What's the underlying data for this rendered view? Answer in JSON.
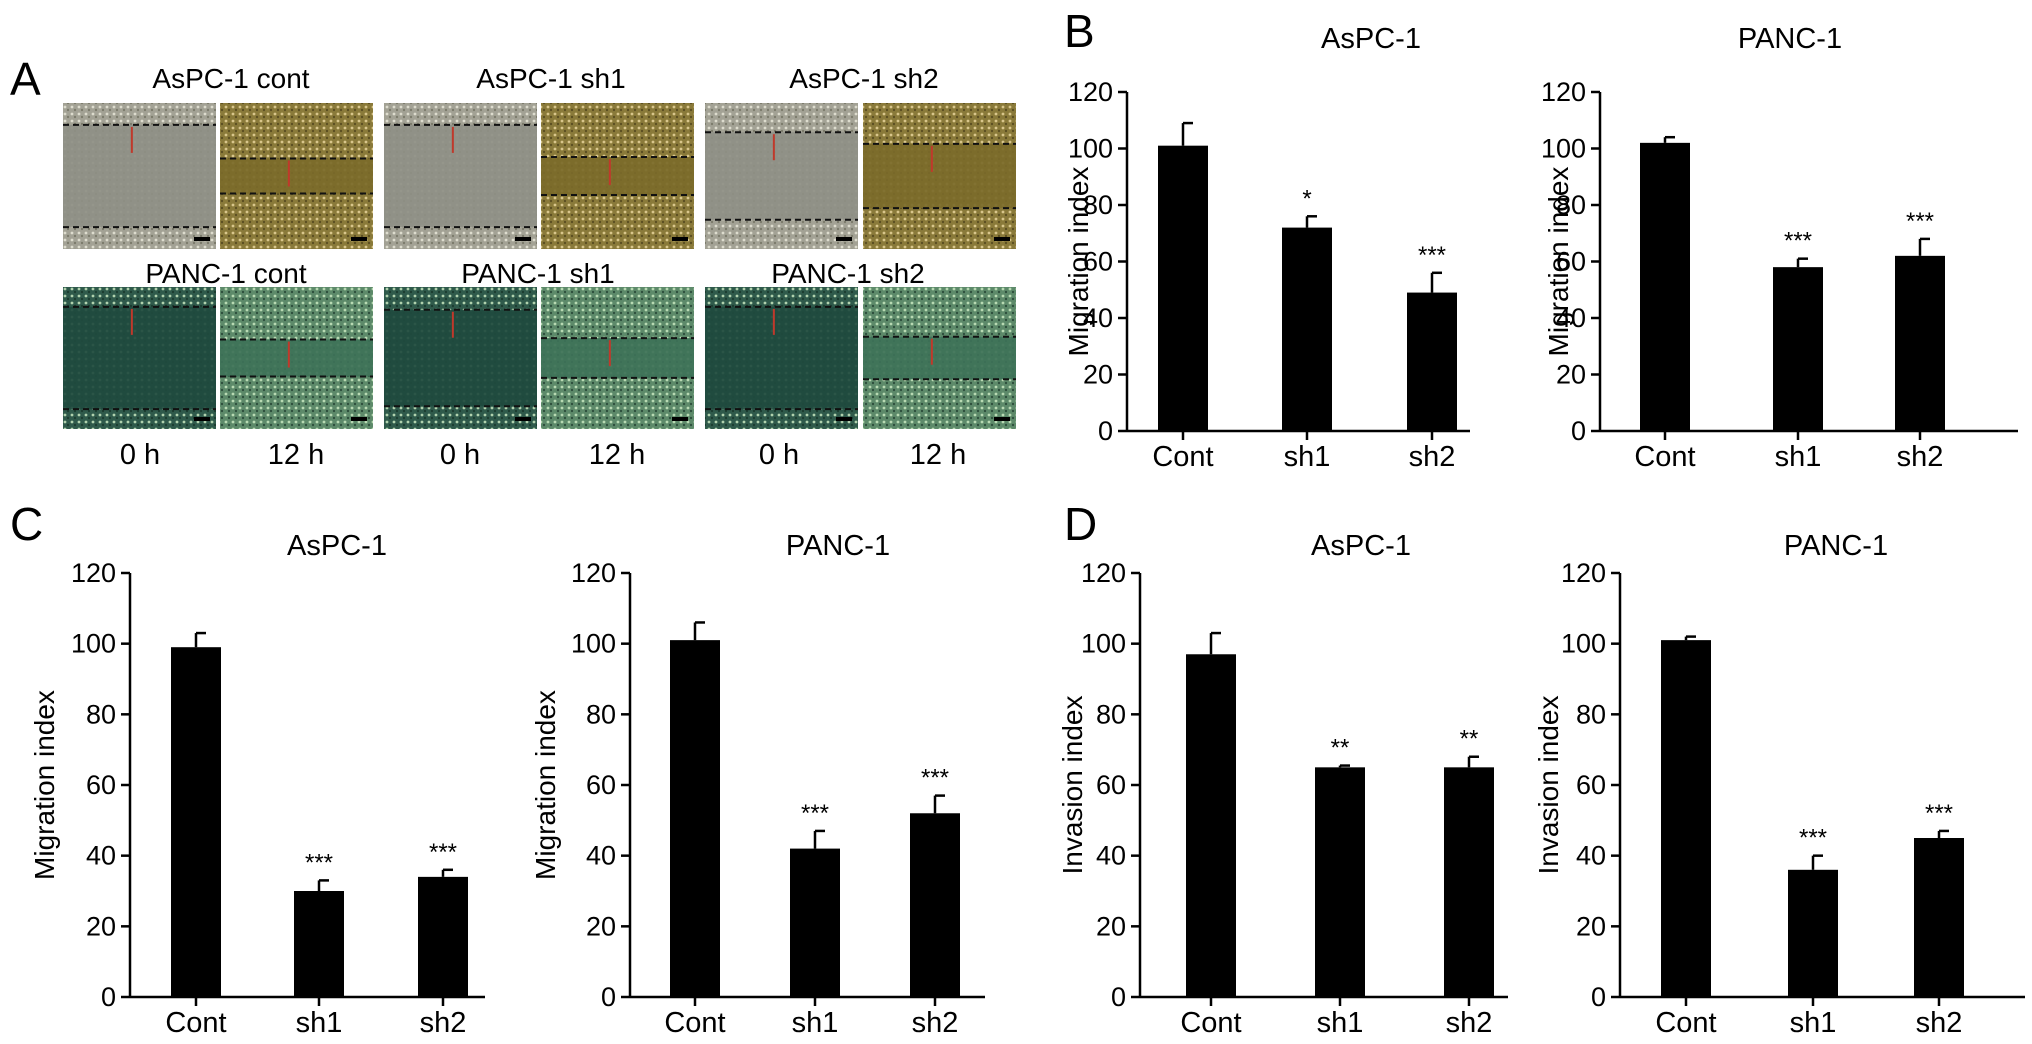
{
  "panel_a": {
    "letter": "A",
    "rows": [
      {
        "groups": [
          "AsPC-1 cont",
          "AsPC-1 sh1",
          "AsPC-1 sh2"
        ]
      },
      {
        "groups": [
          "PANC-1 cont",
          "PANC-1 sh1",
          "PANC-1 sh2"
        ]
      }
    ],
    "time_labels": [
      "0 h",
      "12 h"
    ],
    "colors": {
      "aspc1_0h": "#a3a295",
      "aspc1_12h": "#8a7a3a",
      "panc1_0h": "#2f5a4b",
      "panc1_12h": "#5d8a6a"
    }
  },
  "panel_letters": {
    "b": "B",
    "c": "C",
    "d": "D"
  },
  "colors": {
    "bar": "#000000",
    "axis": "#000000"
  },
  "chart_data": [
    {
      "panel": "B",
      "type": "bar",
      "title": "AsPC-1",
      "xlabel": "",
      "ylabel": "Migration index",
      "categories": [
        "Cont",
        "sh1",
        "sh2"
      ],
      "values": [
        101,
        72,
        49
      ],
      "errors": [
        8,
        4,
        7
      ],
      "significance": [
        "",
        "*",
        "***"
      ],
      "ylim": [
        0,
        120
      ],
      "yticks": [
        0,
        20,
        40,
        60,
        80,
        100,
        120
      ],
      "grid": false
    },
    {
      "panel": "B",
      "type": "bar",
      "title": "PANC-1",
      "xlabel": "",
      "ylabel": "Migration index",
      "categories": [
        "Cont",
        "sh1",
        "sh2"
      ],
      "values": [
        102,
        58,
        62
      ],
      "errors": [
        2,
        3,
        6
      ],
      "significance": [
        "",
        "***",
        "***"
      ],
      "ylim": [
        0,
        120
      ],
      "yticks": [
        0,
        20,
        40,
        60,
        80,
        100,
        120
      ],
      "grid": false
    },
    {
      "panel": "C",
      "type": "bar",
      "title": "AsPC-1",
      "xlabel": "",
      "ylabel": "Migration index",
      "categories": [
        "Cont",
        "sh1",
        "sh2"
      ],
      "values": [
        99,
        30,
        34
      ],
      "errors": [
        4,
        3,
        2
      ],
      "significance": [
        "",
        "***",
        "***"
      ],
      "ylim": [
        0,
        120
      ],
      "yticks": [
        0,
        20,
        40,
        60,
        80,
        100,
        120
      ],
      "grid": false
    },
    {
      "panel": "C",
      "type": "bar",
      "title": "PANC-1",
      "xlabel": "",
      "ylabel": "Migration index",
      "categories": [
        "Cont",
        "sh1",
        "sh2"
      ],
      "values": [
        101,
        42,
        52
      ],
      "errors": [
        5,
        5,
        5
      ],
      "significance": [
        "",
        "***",
        "***"
      ],
      "ylim": [
        0,
        120
      ],
      "yticks": [
        0,
        20,
        40,
        60,
        80,
        100,
        120
      ],
      "grid": false
    },
    {
      "panel": "D",
      "type": "bar",
      "title": "AsPC-1",
      "xlabel": "",
      "ylabel": "Invasion index",
      "categories": [
        "Cont",
        "sh1",
        "sh2"
      ],
      "values": [
        97,
        65,
        65
      ],
      "errors": [
        6,
        0.5,
        3
      ],
      "significance": [
        "",
        "**",
        "**"
      ],
      "ylim": [
        0,
        120
      ],
      "yticks": [
        0,
        20,
        40,
        60,
        80,
        100,
        120
      ],
      "grid": false
    },
    {
      "panel": "D",
      "type": "bar",
      "title": "PANC-1",
      "xlabel": "",
      "ylabel": "Invasion index",
      "categories": [
        "Cont",
        "sh1",
        "sh2"
      ],
      "values": [
        101,
        36,
        45
      ],
      "errors": [
        1,
        4,
        2
      ],
      "significance": [
        "",
        "***",
        "***"
      ],
      "ylim": [
        0,
        120
      ],
      "yticks": [
        0,
        20,
        40,
        60,
        80,
        100,
        120
      ],
      "grid": false
    }
  ]
}
